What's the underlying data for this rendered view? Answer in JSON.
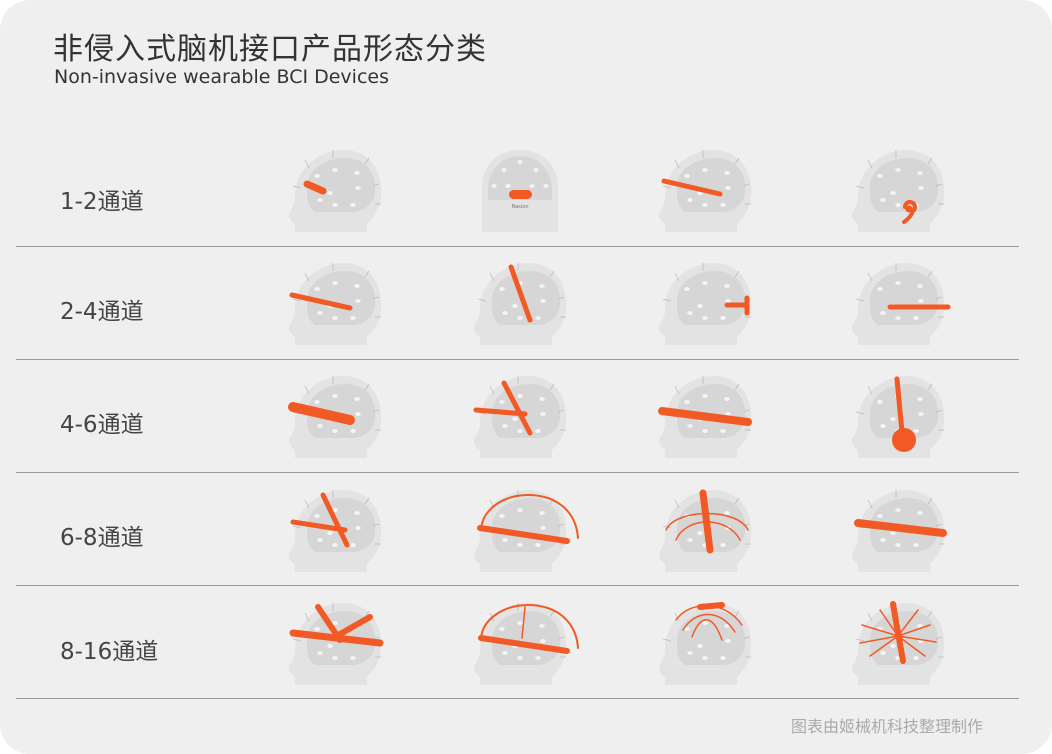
{
  "title": "非侵入式脑机接口产品形态分类",
  "subtitle": "Non-invasive wearable BCI Devices",
  "rows": [
    {
      "label": "1-2通道"
    },
    {
      "label": "2-4通道"
    },
    {
      "label": "4-6通道"
    },
    {
      "label": "6-8通道"
    },
    {
      "label": "8-16通道"
    }
  ],
  "nasion_label": "Nasion",
  "footer": "图表由姬械机科技整理制作",
  "colors": {
    "accent": "#f15a24",
    "background": "#efefef",
    "head": "#e3e3e3",
    "brain": "#d6d6d6"
  }
}
